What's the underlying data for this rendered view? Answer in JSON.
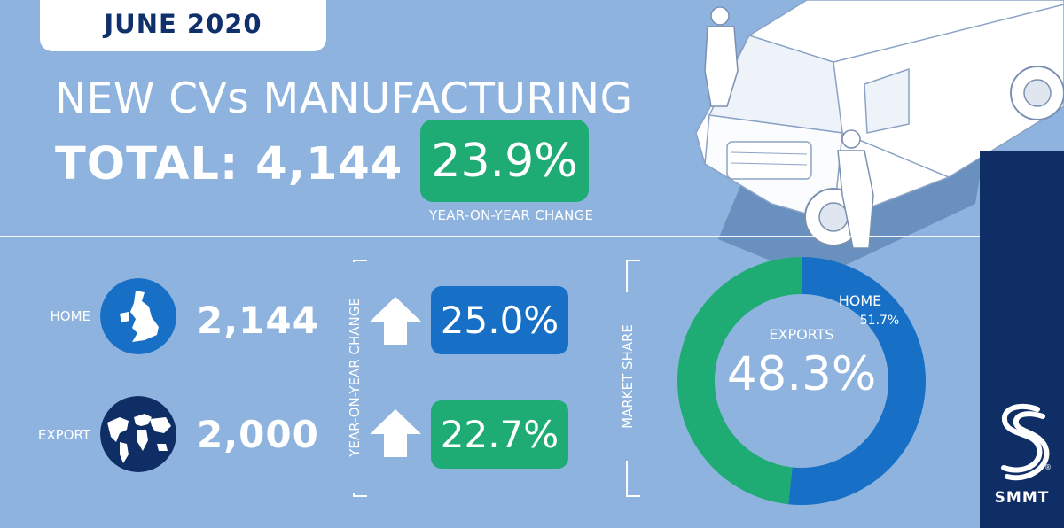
{
  "header": {
    "date": "JUNE 2020",
    "title": "NEW CVs MANUFACTURING",
    "total_label": "TOTAL: 4,144",
    "total_change": "23.9%",
    "total_change_caption": "YEAR-ON-YEAR CHANGE"
  },
  "rows": [
    {
      "label": "HOME",
      "value": "2,144",
      "change": "25.0%",
      "icon": "uk-map-icon",
      "color": "#1770c5"
    },
    {
      "label": "EXPORT",
      "value": "2,000",
      "change": "22.7%",
      "icon": "world-map-icon",
      "color": "#1fac74"
    }
  ],
  "yoy_axis_label": "YEAR-ON-YEAR CHANGE",
  "market_share": {
    "axis_label": "MARKET SHARE",
    "home_label": "HOME",
    "home_value": "51.7%",
    "home_fraction": 0.517,
    "exports_label": "EXPORTS",
    "exports_value": "48.3%",
    "exports_fraction": 0.483,
    "home_color": "#1770c5",
    "exports_color": "#1fac74"
  },
  "brand": {
    "name": "SMMT",
    "band_color": "#0f2e66"
  }
}
